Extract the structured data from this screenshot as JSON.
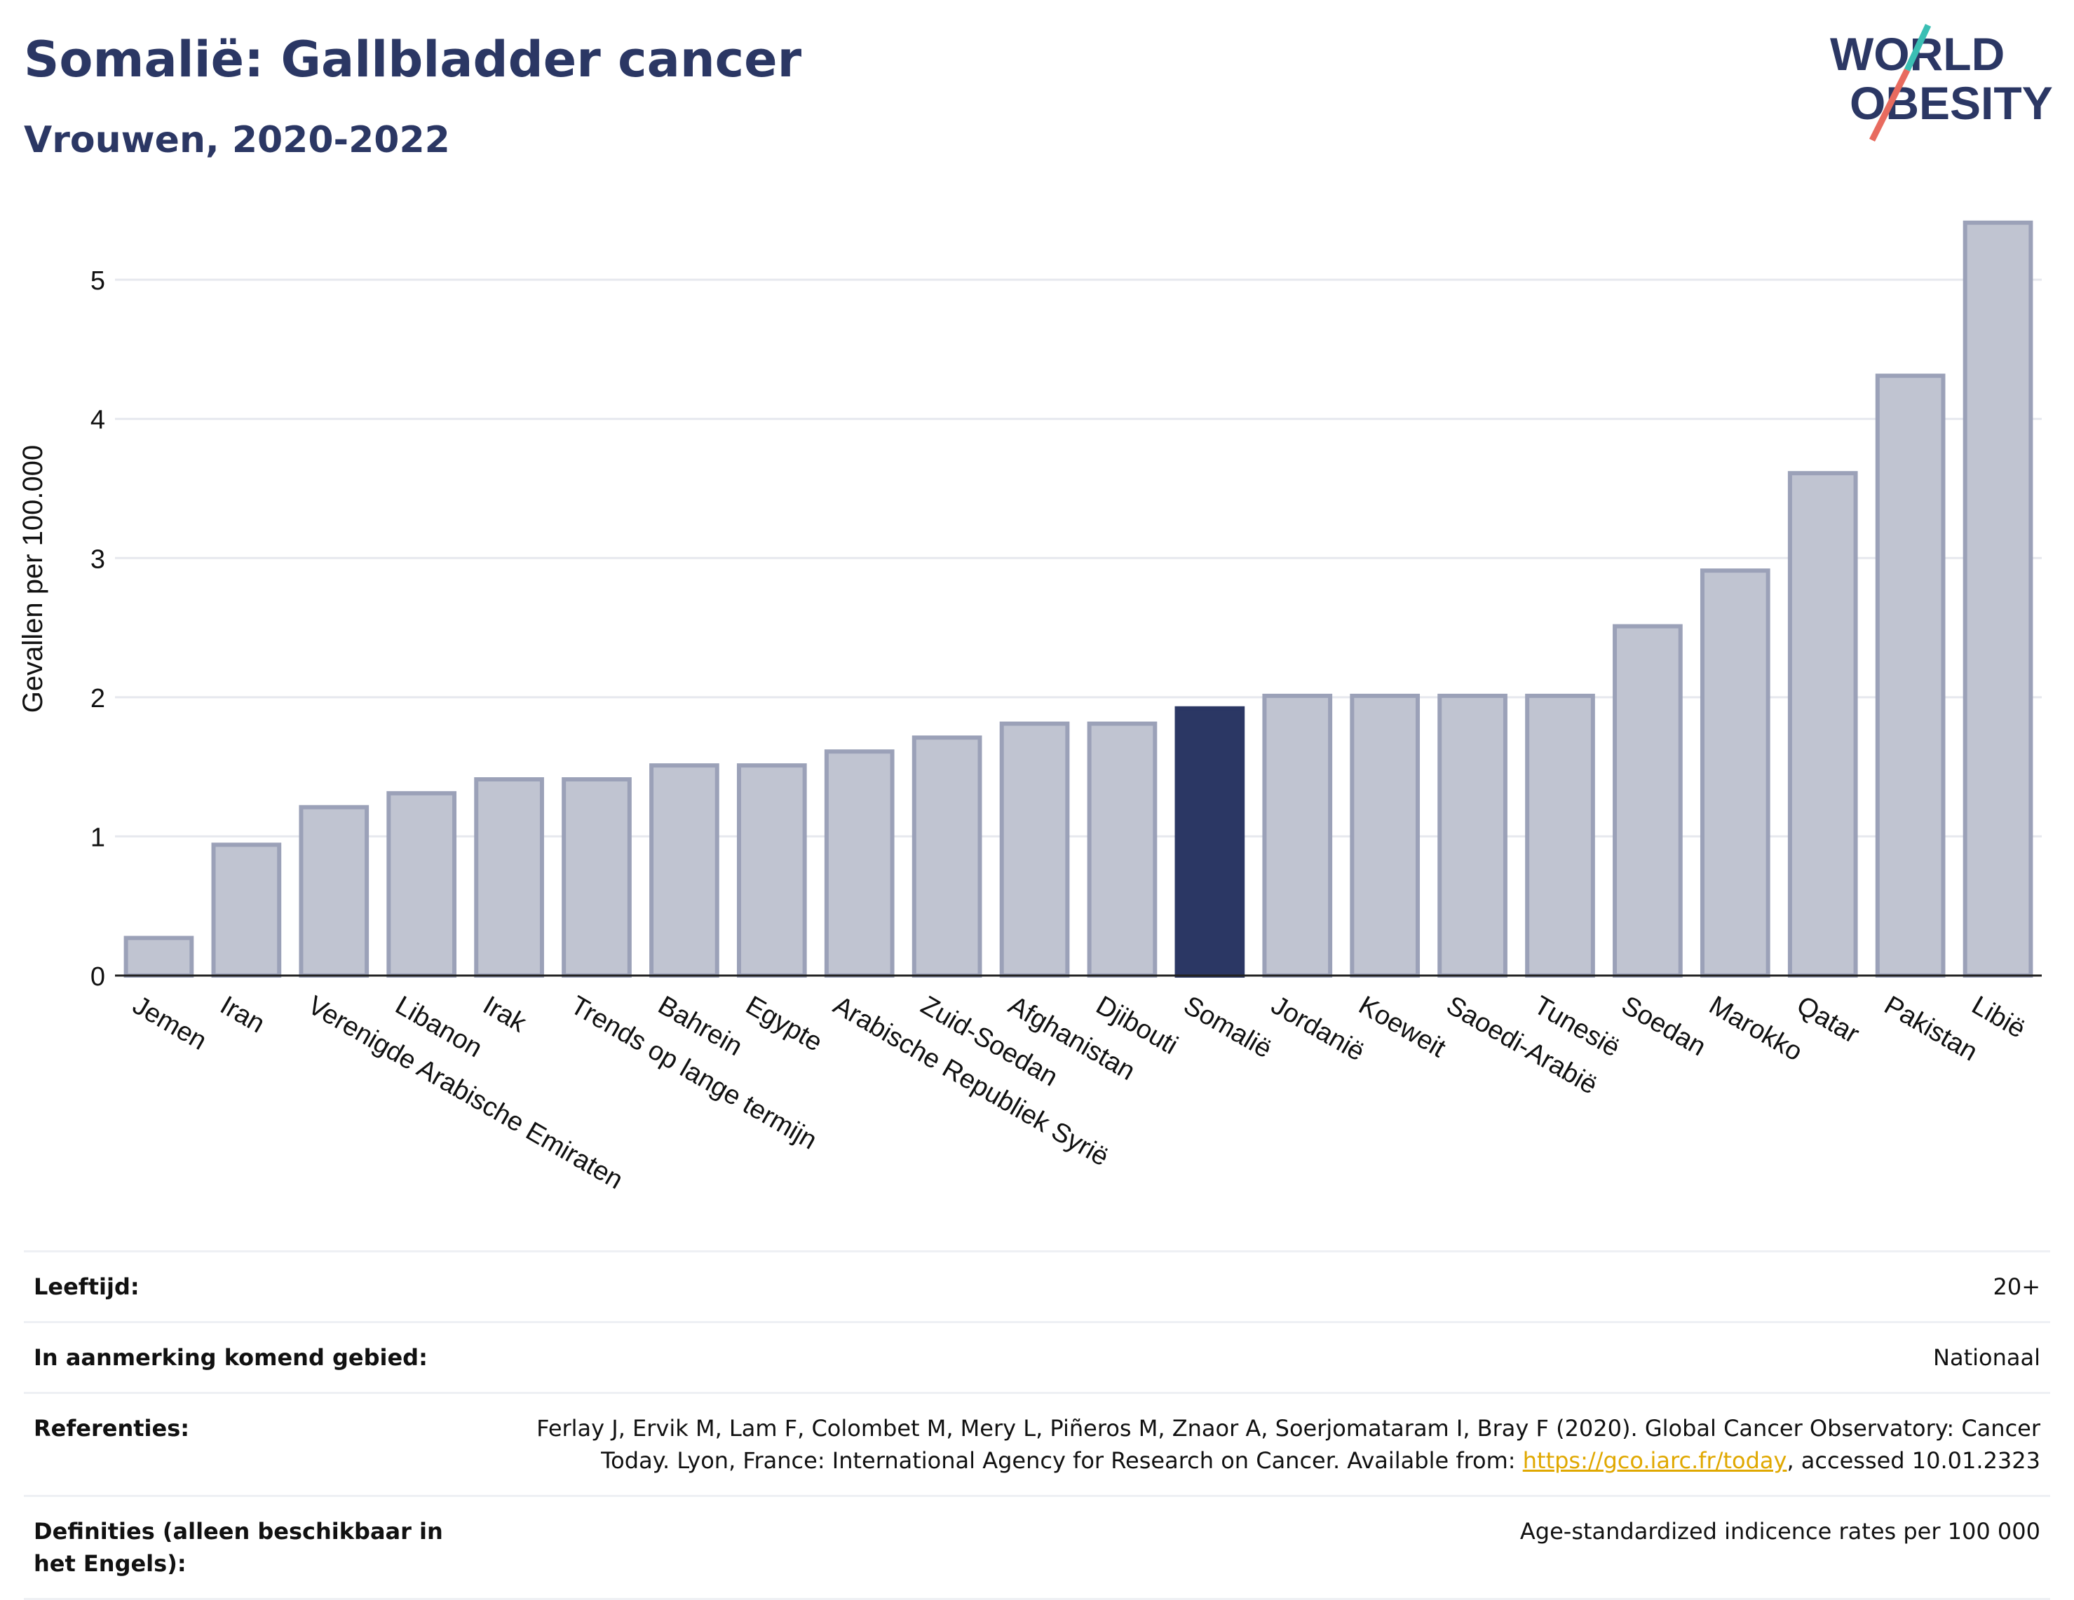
{
  "header": {
    "title": "Somalië: Gallbladder cancer",
    "subtitle": "Vrouwen, 2020-2022"
  },
  "logo": {
    "line1": "WORLD",
    "line2": "OBESITY"
  },
  "colors": {
    "highlight": "#2b3764",
    "bar": "#c0c4d1",
    "bar_border": "#9ba1b8",
    "title": "#2b3764",
    "link": "#e0a800"
  },
  "chart_data": {
    "type": "bar",
    "ylabel": "Gevallen per 100.000",
    "xlabel": "",
    "ylim": [
      0,
      5.6
    ],
    "yticks": [
      0,
      1,
      2,
      3,
      4,
      5
    ],
    "grid": true,
    "highlight": "Somalië",
    "categories": [
      "Jemen",
      "Iran",
      "Verenigde Arabische Emiraten",
      "Libanon",
      "Irak",
      "Trends op lange termijn",
      "Bahrein",
      "Egypte",
      "Arabische Republiek Syrië",
      "Zuid-Soedan",
      "Afghanistan",
      "Djibouti",
      "Somalië",
      "Jordanië",
      "Koeweit",
      "Saoedi-Arabië",
      "Tunesië",
      "Soedan",
      "Marokko",
      "Qatar",
      "Pakistan",
      "Libië"
    ],
    "values": [
      0.27,
      0.94,
      1.21,
      1.31,
      1.41,
      1.41,
      1.51,
      1.51,
      1.61,
      1.71,
      1.81,
      1.81,
      1.92,
      2.01,
      2.01,
      2.01,
      2.01,
      2.51,
      2.91,
      3.61,
      4.31,
      5.41
    ]
  },
  "footer": {
    "rows": [
      {
        "label": "Leeftijd:",
        "value": "20+"
      },
      {
        "label": "In aanmerking komend gebied:",
        "value": "Nationaal"
      },
      {
        "label": "Referenties:",
        "value_pre": "Ferlay J, Ervik M, Lam F, Colombet M, Mery L, Piñeros M, Znaor A, Soerjomataram I, Bray F (2020). Global Cancer Observatory: Cancer Today. Lyon, France: International Agency for Research on Cancer. Available from: ",
        "link": "https://gco.iarc.fr/today",
        "value_post": ", accessed 10.01.2323"
      },
      {
        "label": "Definities (alleen beschikbaar in het Engels):",
        "value": "Age-standardized indicence rates per 100 000"
      }
    ]
  }
}
